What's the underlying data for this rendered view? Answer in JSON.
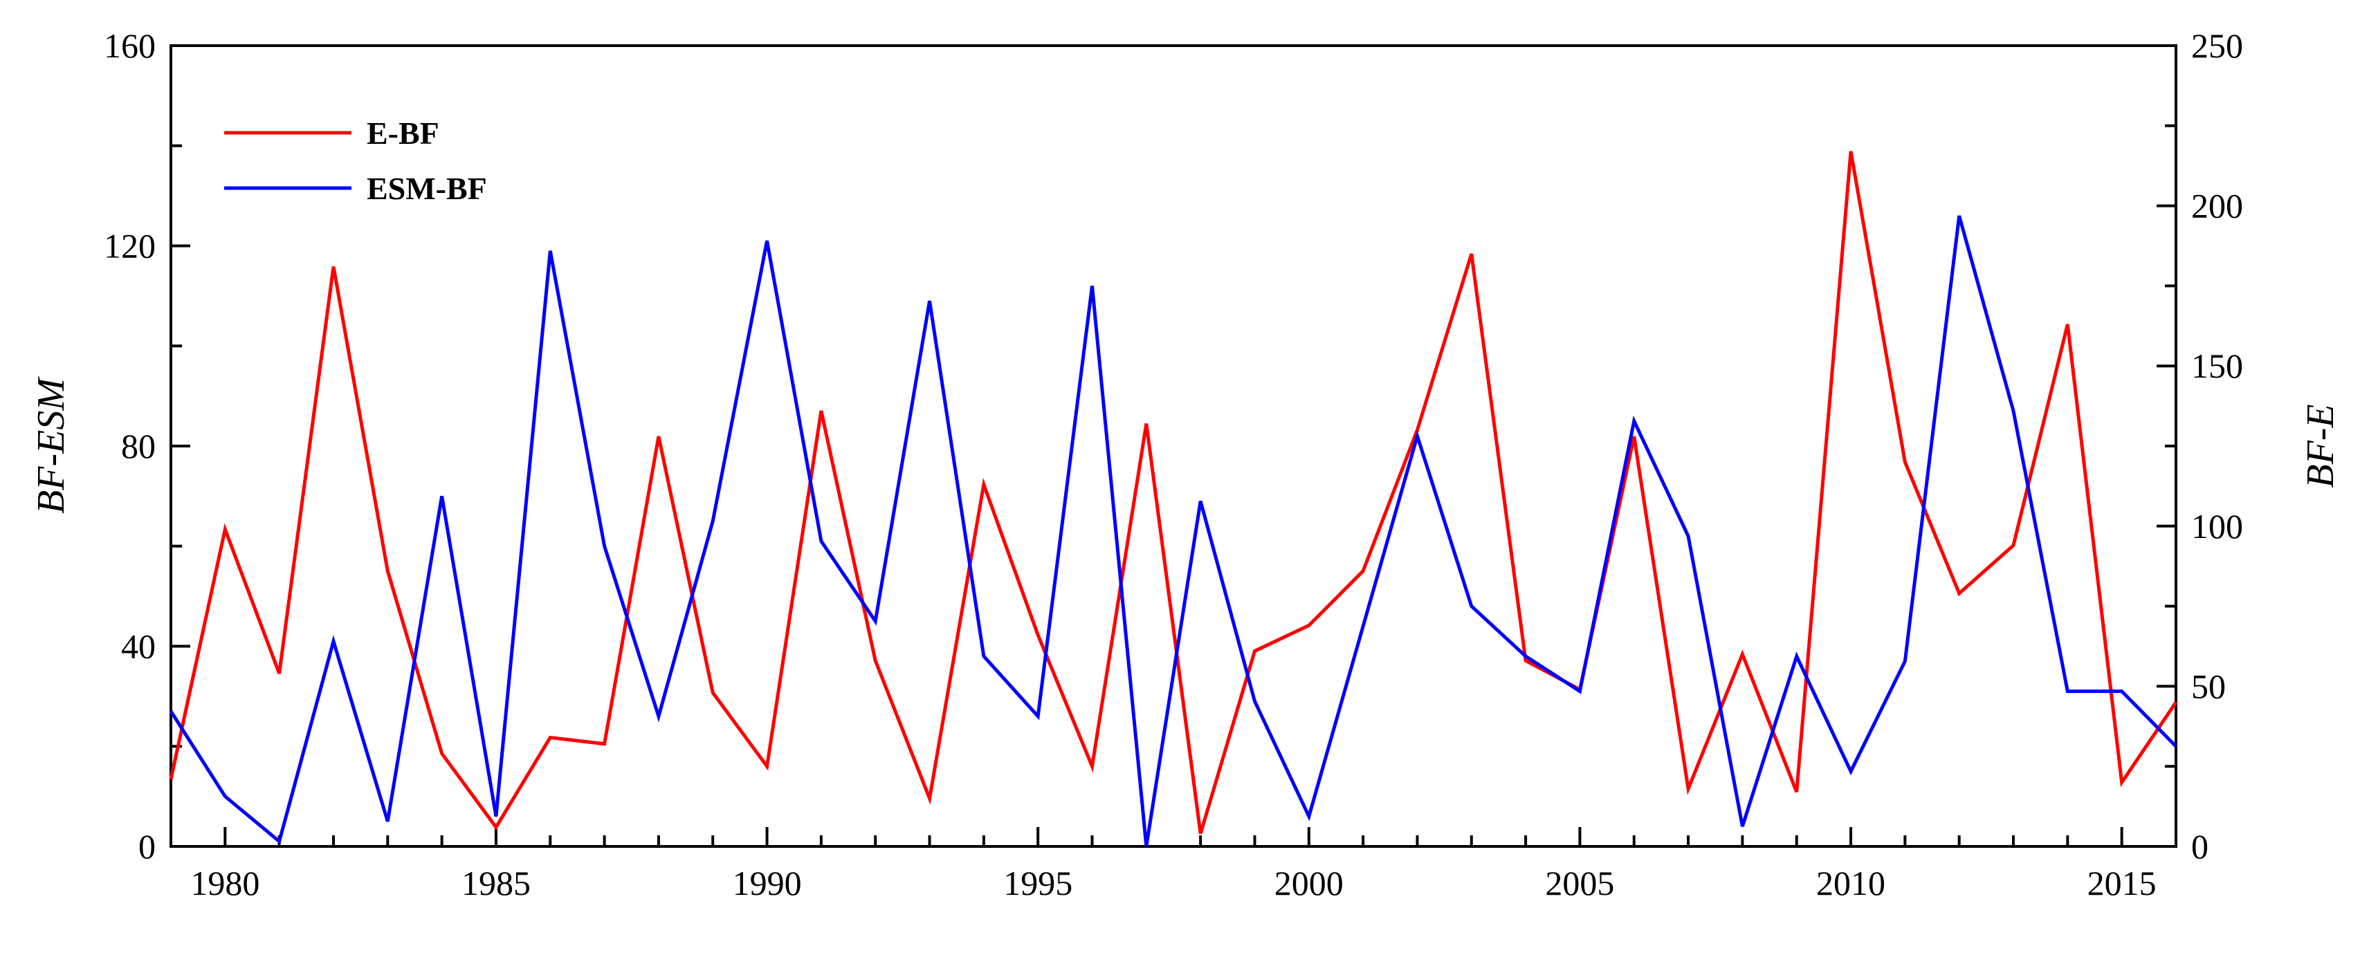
{
  "chart_data": {
    "type": "line",
    "title": "",
    "xlabel": "",
    "ylabel": "BF-ESM",
    "y2label": "BF-E",
    "xlim": [
      1979,
      2016
    ],
    "ylim": [
      0,
      160
    ],
    "y2lim": [
      0,
      250
    ],
    "xticks": [
      1980,
      1985,
      1990,
      1995,
      2000,
      2005,
      2010,
      2015
    ],
    "yticks": [
      0,
      40,
      80,
      120,
      160
    ],
    "y2ticks": [
      0,
      50,
      100,
      150,
      200,
      250
    ],
    "grid": false,
    "legend_position": "top-left",
    "x": [
      1979,
      1980,
      1981,
      1982,
      1983,
      1984,
      1985,
      1986,
      1987,
      1988,
      1989,
      1990,
      1991,
      1992,
      1993,
      1994,
      1995,
      1996,
      1997,
      1998,
      1999,
      2000,
      2001,
      2002,
      2003,
      2004,
      2005,
      2006,
      2007,
      2008,
      2009,
      2010,
      2011,
      2012,
      2013,
      2014,
      2015,
      2016
    ],
    "series": [
      {
        "name": "E-BF",
        "axis": "right",
        "color": "#ff0000",
        "values": [
          21,
          99,
          54,
          181,
          86,
          29,
          6,
          34,
          32,
          128,
          48,
          25,
          136,
          58,
          15,
          113,
          66,
          25,
          132,
          4,
          61,
          69,
          86,
          130,
          185,
          58,
          49,
          128,
          18,
          60,
          17,
          217,
          120,
          79,
          94,
          163,
          20,
          45
        ]
      },
      {
        "name": "ESM-BF",
        "axis": "left",
        "color": "#0000ff",
        "values": [
          27,
          10,
          1,
          41,
          5,
          70,
          6,
          119,
          60,
          26,
          65,
          121,
          61,
          45,
          109,
          38,
          26,
          112,
          0,
          69,
          29,
          6,
          44,
          82,
          48,
          38,
          31,
          85,
          62,
          4,
          38,
          15,
          37,
          126,
          87,
          31,
          31,
          20
        ]
      }
    ]
  }
}
